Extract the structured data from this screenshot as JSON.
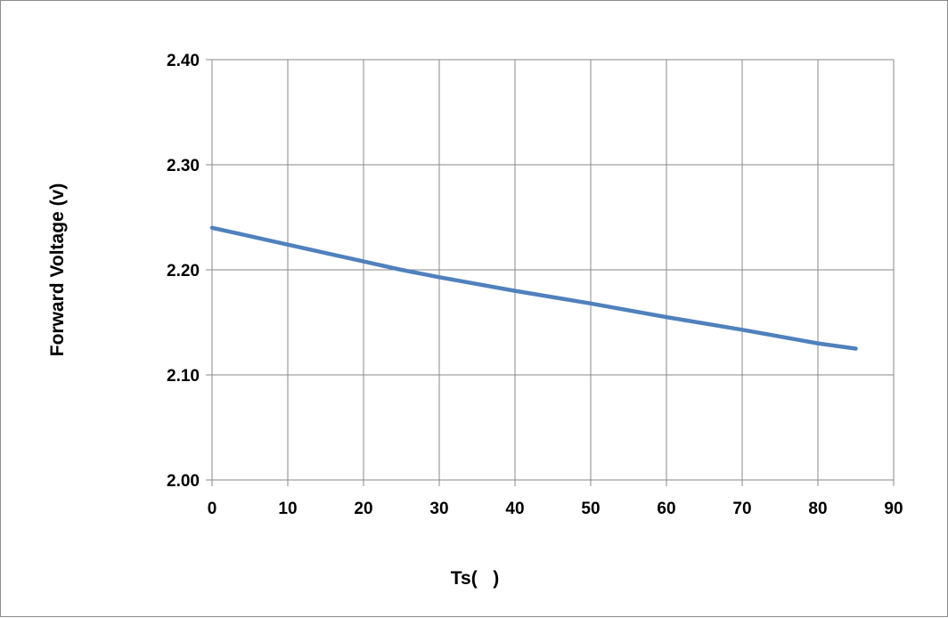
{
  "chart_data": {
    "type": "line",
    "title": "",
    "xlabel": "Ts(   )",
    "ylabel": "Forward Voltage (v)",
    "xlim": [
      0,
      90
    ],
    "ylim": [
      2.0,
      2.4
    ],
    "x_ticks": [
      "0",
      "10",
      "20",
      "30",
      "40",
      "50",
      "60",
      "70",
      "80",
      "90"
    ],
    "y_ticks": [
      "2.00",
      "2.10",
      "2.20",
      "2.30",
      "2.40"
    ],
    "grid": true,
    "legend": "none",
    "series": [
      {
        "color": "#4f81bd",
        "x": [
          0,
          10,
          20,
          25,
          30,
          40,
          50,
          60,
          70,
          80,
          85
        ],
        "y": [
          2.24,
          2.224,
          2.208,
          2.2,
          2.193,
          2.18,
          2.168,
          2.155,
          2.143,
          2.13,
          2.125
        ]
      }
    ]
  }
}
